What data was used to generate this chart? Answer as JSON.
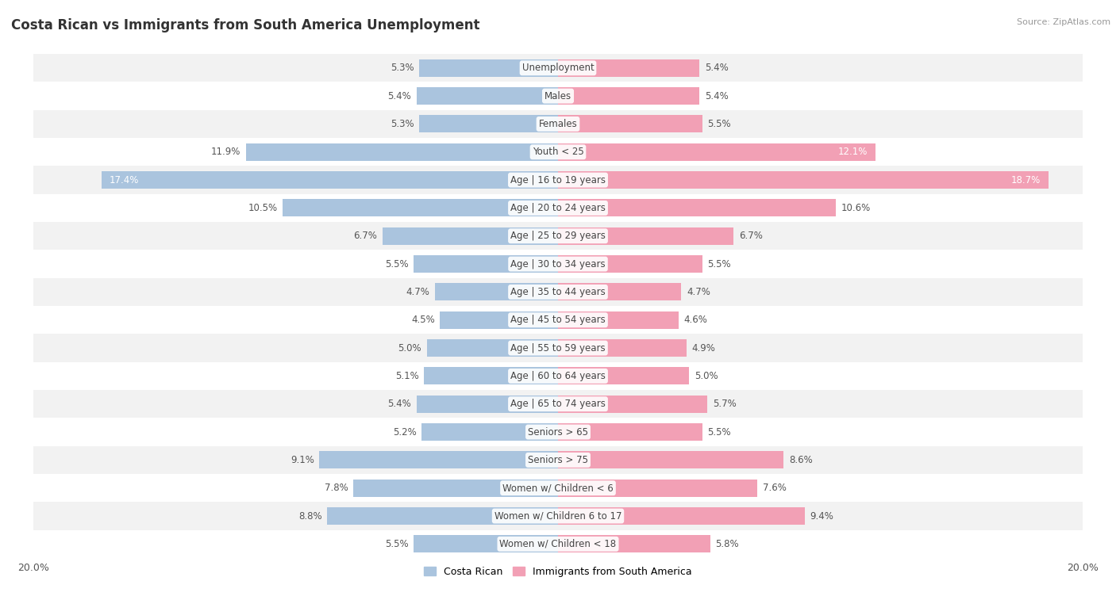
{
  "title": "Costa Rican vs Immigrants from South America Unemployment",
  "source": "Source: ZipAtlas.com",
  "categories": [
    "Unemployment",
    "Males",
    "Females",
    "Youth < 25",
    "Age | 16 to 19 years",
    "Age | 20 to 24 years",
    "Age | 25 to 29 years",
    "Age | 30 to 34 years",
    "Age | 35 to 44 years",
    "Age | 45 to 54 years",
    "Age | 55 to 59 years",
    "Age | 60 to 64 years",
    "Age | 65 to 74 years",
    "Seniors > 65",
    "Seniors > 75",
    "Women w/ Children < 6",
    "Women w/ Children 6 to 17",
    "Women w/ Children < 18"
  ],
  "costa_rican": [
    5.3,
    5.4,
    5.3,
    11.9,
    17.4,
    10.5,
    6.7,
    5.5,
    4.7,
    4.5,
    5.0,
    5.1,
    5.4,
    5.2,
    9.1,
    7.8,
    8.8,
    5.5
  ],
  "immigrants": [
    5.4,
    5.4,
    5.5,
    12.1,
    18.7,
    10.6,
    6.7,
    5.5,
    4.7,
    4.6,
    4.9,
    5.0,
    5.7,
    5.5,
    8.6,
    7.6,
    9.4,
    5.8
  ],
  "costa_rican_color": "#aac4de",
  "immigrants_color": "#f2a0b5",
  "max_val": 20.0,
  "bar_height": 0.62,
  "row_bg_colors": [
    "#f2f2f2",
    "#ffffff"
  ],
  "title_fontsize": 12,
  "source_fontsize": 8,
  "label_fontsize": 8.5,
  "cat_fontsize": 8.5,
  "white_threshold": 12.0
}
